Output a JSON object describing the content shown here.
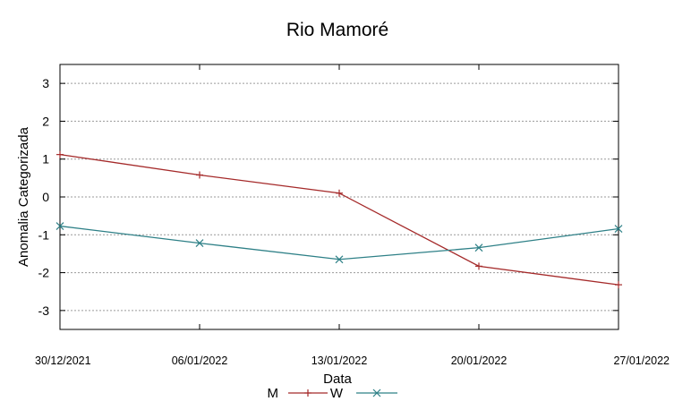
{
  "chart_data": {
    "type": "line",
    "title": "Rio Mamoré",
    "xlabel": "Data",
    "ylabel": "Anomalia Categorizada",
    "categories": [
      "30/12/2021",
      "06/01/2022",
      "13/01/2022",
      "20/01/2022",
      "27/01/2022"
    ],
    "yticks": [
      "3",
      "2",
      "1",
      "0",
      "-1",
      "-2",
      "-3"
    ],
    "ylim": [
      -3.5,
      3.5
    ],
    "grid": true,
    "legend_position": "bottom",
    "series": [
      {
        "name": "M",
        "color": "#a52a2a",
        "marker": "plus",
        "values": [
          1.12,
          0.58,
          0.1,
          -1.83,
          -2.32
        ]
      },
      {
        "name": "W",
        "color": "#2e8087",
        "marker": "x",
        "values": [
          -0.77,
          -1.22,
          -1.65,
          -1.34,
          -0.84
        ]
      }
    ]
  }
}
